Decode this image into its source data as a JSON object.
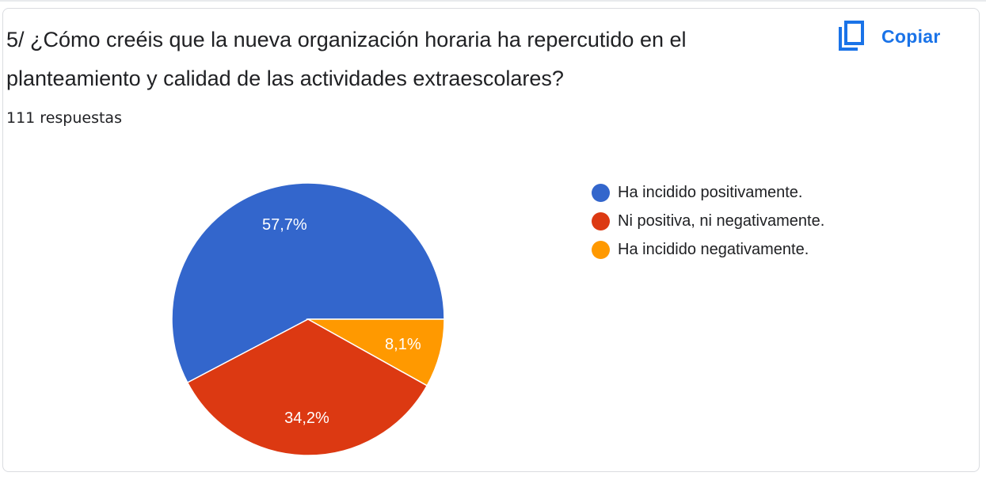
{
  "question": {
    "title": "5/ ¿Cómo creéis que la nueva organización horaria ha repercutido en el planteamiento y calidad de las actividades extraescolares?",
    "responses": "111 respuestas"
  },
  "toolbar": {
    "copy_label": "Copiar",
    "copy_icon": "copy-icon"
  },
  "colors": {
    "accent": "#1a73e8"
  },
  "chart_data": {
    "type": "pie",
    "title": "",
    "series": [
      {
        "name": "Ha incidido positivamente.",
        "value": 57.7,
        "label": "57,7%",
        "color": "#3366cc"
      },
      {
        "name": "Ni positiva, ni negativamente.",
        "value": 34.2,
        "label": "34,2%",
        "color": "#dc3912"
      },
      {
        "name": "Ha incidido negativamente.",
        "value": 8.1,
        "label": "8,1%",
        "color": "#ff9900"
      }
    ],
    "legend_position": "right",
    "start": "3 o'clock, counter-clockwise"
  }
}
